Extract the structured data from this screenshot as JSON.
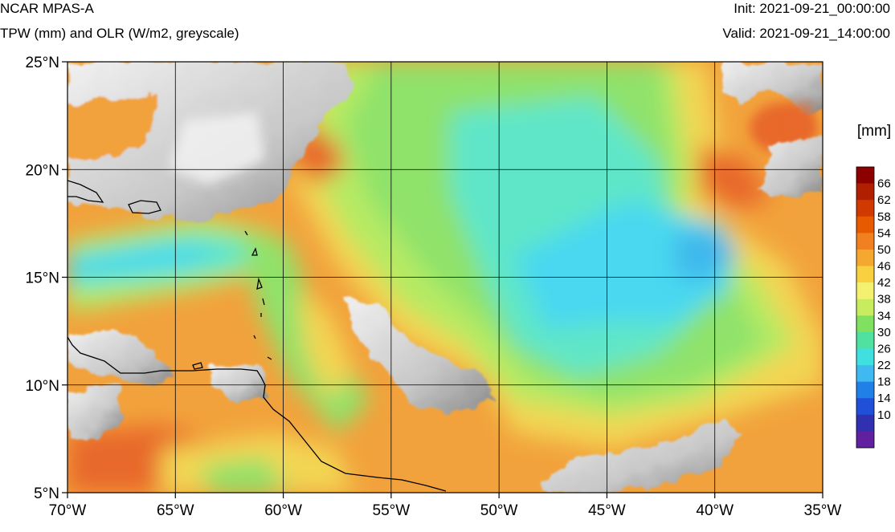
{
  "header": {
    "title": "NCAR MPAS-A",
    "subtitle": "TPW (mm) and OLR (W/m2, greyscale)",
    "init": "Init: 2021-09-21_00:00:00",
    "valid": "Valid: 2021-09-21_14:00:00"
  },
  "map": {
    "lon_range": [
      -70,
      -35
    ],
    "lat_range": [
      5,
      25
    ],
    "x_ticks": [
      {
        "value": -70,
        "label": "70°W"
      },
      {
        "value": -65,
        "label": "65°W"
      },
      {
        "value": -60,
        "label": "60°W"
      },
      {
        "value": -55,
        "label": "55°W"
      },
      {
        "value": -50,
        "label": "50°W"
      },
      {
        "value": -45,
        "label": "45°W"
      },
      {
        "value": -40,
        "label": "40°W"
      },
      {
        "value": -35,
        "label": "35°W"
      }
    ],
    "y_ticks": [
      {
        "value": 25,
        "label": "25°N"
      },
      {
        "value": 20,
        "label": "20°N"
      },
      {
        "value": 15,
        "label": "15°N"
      },
      {
        "value": 10,
        "label": "10°N"
      },
      {
        "value": 5,
        "label": "5°N"
      }
    ],
    "grid": true
  },
  "colorbar": {
    "unit": "[mm]",
    "levels": [
      "66",
      "62",
      "58",
      "54",
      "50",
      "46",
      "42",
      "38",
      "34",
      "30",
      "26",
      "22",
      "18",
      "14",
      "10"
    ],
    "colors": [
      "#8c0000",
      "#b02000",
      "#d03a00",
      "#e85a00",
      "#f08020",
      "#f4a830",
      "#f8d040",
      "#f4f070",
      "#c8ec60",
      "#80e060",
      "#50e0a0",
      "#40e0e0",
      "#40b8f0",
      "#2080e8",
      "#2050d8",
      "#3030b0",
      "#6020a0"
    ]
  },
  "palette": {
    "tpw_orange": "#f2a23c",
    "tpw_yellow": "#f3d553",
    "tpw_green": "#8fe26a",
    "tpw_lightgreen": "#b6ea64",
    "tpw_cyan": "#5fe6c8",
    "tpw_blue": "#4ad8f0",
    "tpw_deepblue": "#3fb8ec",
    "tpw_redorange": "#e8692a",
    "cloud_light": "#e2e2e2",
    "cloud_mid": "#b6b6b6",
    "cloud_dark": "#8c8c8c"
  }
}
